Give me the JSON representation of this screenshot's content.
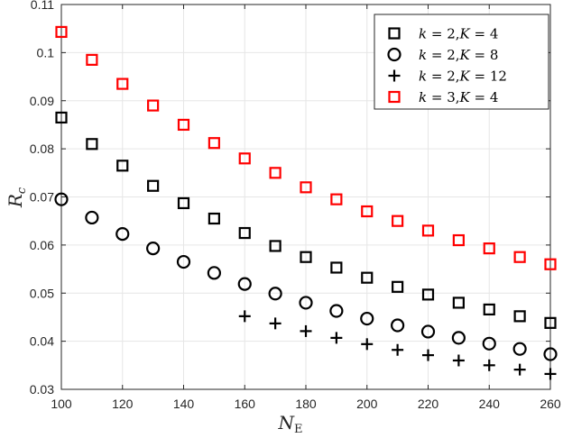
{
  "chart_data": {
    "type": "scatter",
    "title": "",
    "xlabel": "N_E",
    "ylabel": "R_c",
    "xlim": [
      100,
      260
    ],
    "ylim": [
      0.03,
      0.11
    ],
    "xticks": [
      100,
      120,
      140,
      160,
      180,
      200,
      220,
      240,
      260
    ],
    "xtick_labels": [
      "100",
      "120",
      "140",
      "160",
      "180",
      "200",
      "220",
      "240",
      "260"
    ],
    "yticks": [
      0.03,
      0.04,
      0.05,
      0.06,
      0.07,
      0.08,
      0.09,
      0.1,
      0.11
    ],
    "ytick_labels": [
      "0.03",
      "0.04",
      "0.05",
      "0.06",
      "0.07",
      "0.08",
      "0.09",
      "0.1",
      "0.11"
    ],
    "grid": true,
    "legend_position": "upper right",
    "series": [
      {
        "name": "k = 2,K = 4",
        "marker": "square",
        "color": "#000000",
        "x": [
          100,
          110,
          120,
          130,
          140,
          150,
          160,
          170,
          180,
          190,
          200,
          210,
          220,
          230,
          240,
          250,
          260
        ],
        "values": [
          0.0865,
          0.081,
          0.0765,
          0.0723,
          0.0687,
          0.0655,
          0.0625,
          0.0598,
          0.0575,
          0.0553,
          0.0532,
          0.0513,
          0.0497,
          0.048,
          0.0466,
          0.0452,
          0.0438
        ]
      },
      {
        "name": "k = 2,K = 8",
        "marker": "circle",
        "color": "#000000",
        "x": [
          100,
          110,
          120,
          130,
          140,
          150,
          160,
          170,
          180,
          190,
          200,
          210,
          220,
          230,
          240,
          250,
          260
        ],
        "values": [
          0.0695,
          0.0657,
          0.0623,
          0.0593,
          0.0565,
          0.0542,
          0.0519,
          0.0499,
          0.048,
          0.0463,
          0.0447,
          0.0433,
          0.042,
          0.0407,
          0.0395,
          0.0384,
          0.0373
        ]
      },
      {
        "name": "k = 2,K = 12",
        "marker": "plus",
        "color": "#000000",
        "x": [
          160,
          170,
          180,
          190,
          200,
          210,
          220,
          230,
          240,
          250,
          260
        ],
        "values": [
          0.0452,
          0.0437,
          0.0421,
          0.0407,
          0.0394,
          0.0382,
          0.0371,
          0.036,
          0.035,
          0.0341,
          0.0332
        ]
      },
      {
        "name": "k = 3,K = 4",
        "marker": "square",
        "color": "#ff0000",
        "x": [
          100,
          110,
          120,
          130,
          140,
          150,
          160,
          170,
          180,
          190,
          200,
          210,
          220,
          230,
          240,
          250,
          260
        ],
        "values": [
          0.1043,
          0.0985,
          0.0935,
          0.089,
          0.085,
          0.0812,
          0.078,
          0.075,
          0.072,
          0.0695,
          0.067,
          0.065,
          0.063,
          0.061,
          0.0593,
          0.0575,
          0.056
        ]
      }
    ]
  },
  "axes": {
    "x_title_main": "N",
    "x_title_sub": "E",
    "y_title_main": "R",
    "y_title_sub": "c"
  },
  "legend": {
    "entries": [
      {
        "k": "2",
        "K": "4"
      },
      {
        "k": "2",
        "K": "8"
      },
      {
        "k": "2",
        "K": "12"
      },
      {
        "k": "3",
        "K": "4"
      }
    ]
  }
}
